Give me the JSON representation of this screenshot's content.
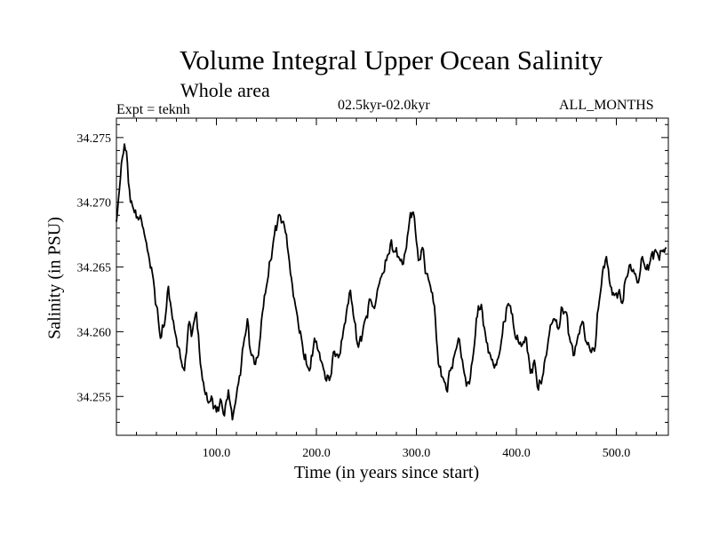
{
  "chart_data": {
    "type": "line",
    "title": "Volume Integral Upper Ocean Salinity",
    "subtitle": "Whole area",
    "experiment": "Expt = teknh",
    "period": "02.5kyr-02.0kyr",
    "months": "ALL_MONTHS",
    "xlabel": "Time (in years since start)",
    "ylabel": "Salinity (in PSU)",
    "xlim": [
      0,
      552
    ],
    "ylim": [
      34.252,
      34.2765
    ],
    "xticks": [
      100,
      200,
      300,
      400,
      500
    ],
    "xtick_labels": [
      "100.0",
      "200.0",
      "300.0",
      "400.0",
      "500.0"
    ],
    "yticks": [
      34.255,
      34.26,
      34.265,
      34.27,
      34.275
    ],
    "ytick_labels": [
      "34.255",
      "34.260",
      "34.265",
      "34.270",
      "34.275"
    ],
    "series": [
      {
        "name": "Salinity",
        "color": "#000000",
        "x": [
          0,
          3,
          6,
          8,
          11,
          14,
          17,
          20,
          24,
          28,
          32,
          36,
          40,
          44,
          48,
          52,
          56,
          60,
          64,
          68,
          72,
          76,
          80,
          84,
          88,
          92,
          96,
          100,
          104,
          108,
          112,
          116,
          119,
          122,
          125,
          128,
          131,
          134,
          138,
          142,
          146,
          150,
          154,
          158,
          162,
          166,
          170,
          174,
          178,
          182,
          186,
          190,
          194,
          198,
          202,
          206,
          210,
          214,
          218,
          222,
          226,
          230,
          234,
          238,
          242,
          246,
          250,
          254,
          258,
          262,
          266,
          270,
          274,
          278,
          282,
          286,
          290,
          294,
          298,
          302,
          306,
          310,
          314,
          318,
          322,
          326,
          330,
          334,
          338,
          342,
          346,
          350,
          354,
          358,
          362,
          366,
          370,
          374,
          378,
          382,
          386,
          390,
          394,
          398,
          402,
          406,
          410,
          414,
          418,
          422,
          426,
          430,
          434,
          438,
          442,
          446,
          450,
          454,
          458,
          462,
          466,
          470,
          474,
          478,
          482,
          486,
          490,
          494,
          498,
          502,
          506,
          510,
          514,
          518,
          522,
          526,
          530,
          534,
          538,
          542,
          546,
          550
        ],
        "values": [
          34.2685,
          34.271,
          34.2735,
          34.2745,
          34.273,
          34.27,
          34.2695,
          34.2688,
          34.269,
          34.2675,
          34.266,
          34.2645,
          34.262,
          34.2595,
          34.2605,
          34.2635,
          34.261,
          34.2595,
          34.258,
          34.257,
          34.2605,
          34.26,
          34.2615,
          34.2575,
          34.2555,
          34.2545,
          34.2548,
          34.2538,
          34.2548,
          34.2535,
          34.2555,
          34.2532,
          34.2545,
          34.256,
          34.2575,
          34.2595,
          34.261,
          34.2585,
          34.2575,
          34.2582,
          34.2615,
          34.2635,
          34.2655,
          34.2675,
          34.269,
          34.2685,
          34.2675,
          34.2645,
          34.2625,
          34.2605,
          34.259,
          34.2575,
          34.2572,
          34.2595,
          34.2585,
          34.2575,
          34.2562,
          34.2565,
          34.2585,
          34.258,
          34.2595,
          34.2615,
          34.2632,
          34.2608,
          34.2588,
          34.2598,
          34.2612,
          34.2625,
          34.2618,
          34.2635,
          34.2645,
          34.2655,
          34.2668,
          34.2662,
          34.2658,
          34.2652,
          34.2665,
          34.2692,
          34.2688,
          34.2655,
          34.2665,
          34.2645,
          34.2635,
          34.262,
          34.2575,
          34.2565,
          34.2555,
          34.257,
          34.2582,
          34.2595,
          34.2578,
          34.2558,
          34.2565,
          34.259,
          34.262,
          34.2615,
          34.2592,
          34.2582,
          34.2572,
          34.258,
          34.2598,
          34.2618,
          34.262,
          34.26,
          34.2592,
          34.259,
          34.2595,
          34.2568,
          34.2578,
          34.2555,
          34.2565,
          34.2582,
          34.2605,
          34.261,
          34.2602,
          34.2618,
          34.2615,
          34.2592,
          34.2582,
          34.2598,
          34.2608,
          34.2592,
          34.2585,
          34.2585,
          34.2618,
          34.2645,
          34.2658,
          34.2635,
          34.2628,
          34.263,
          34.2622,
          34.2642,
          34.2652,
          34.2645,
          34.2638,
          34.2658,
          34.2648,
          34.2655,
          34.2662,
          34.2658,
          34.2662,
          34.2665
        ]
      }
    ]
  }
}
